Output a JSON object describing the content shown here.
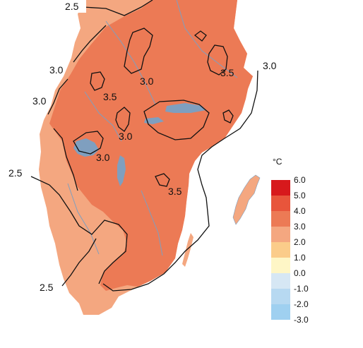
{
  "legend": {
    "unit": "°C",
    "ticks": [
      "6.0",
      "5.0",
      "4.0",
      "3.0",
      "2.0",
      "1.0",
      "0.0",
      "-1.0",
      "-2.0",
      "-3.0"
    ],
    "bins": [
      {
        "color": "#d7191c",
        "from": 5.0,
        "to": 6.0
      },
      {
        "color": "#e8553b",
        "from": 4.0,
        "to": 5.0
      },
      {
        "color": "#ec7a55",
        "from": 3.0,
        "to": 4.0
      },
      {
        "color": "#f4a780",
        "from": 2.0,
        "to": 3.0
      },
      {
        "color": "#fbcc8a",
        "from": 1.0,
        "to": 2.0
      },
      {
        "color": "#fef6c6",
        "from": 0.0,
        "to": 1.0
      },
      {
        "color": "#d6e7f4",
        "from": -1.0,
        "to": 0.0
      },
      {
        "color": "#b7d9f1",
        "from": -2.0,
        "to": -1.0
      },
      {
        "color": "#9fd0f0",
        "from": -3.0,
        "to": -2.0
      }
    ]
  },
  "map": {
    "land_high_color": "#ec7a55",
    "land_low_color": "#f4a780",
    "water_color": "#7f9fbf",
    "contour_labels": [
      "2.5",
      "3.0",
      "3.0",
      "3.0",
      "3.5",
      "3.0",
      "3.5",
      "3.0",
      "3.5",
      "3.0",
      "2.5",
      "2.5"
    ]
  }
}
